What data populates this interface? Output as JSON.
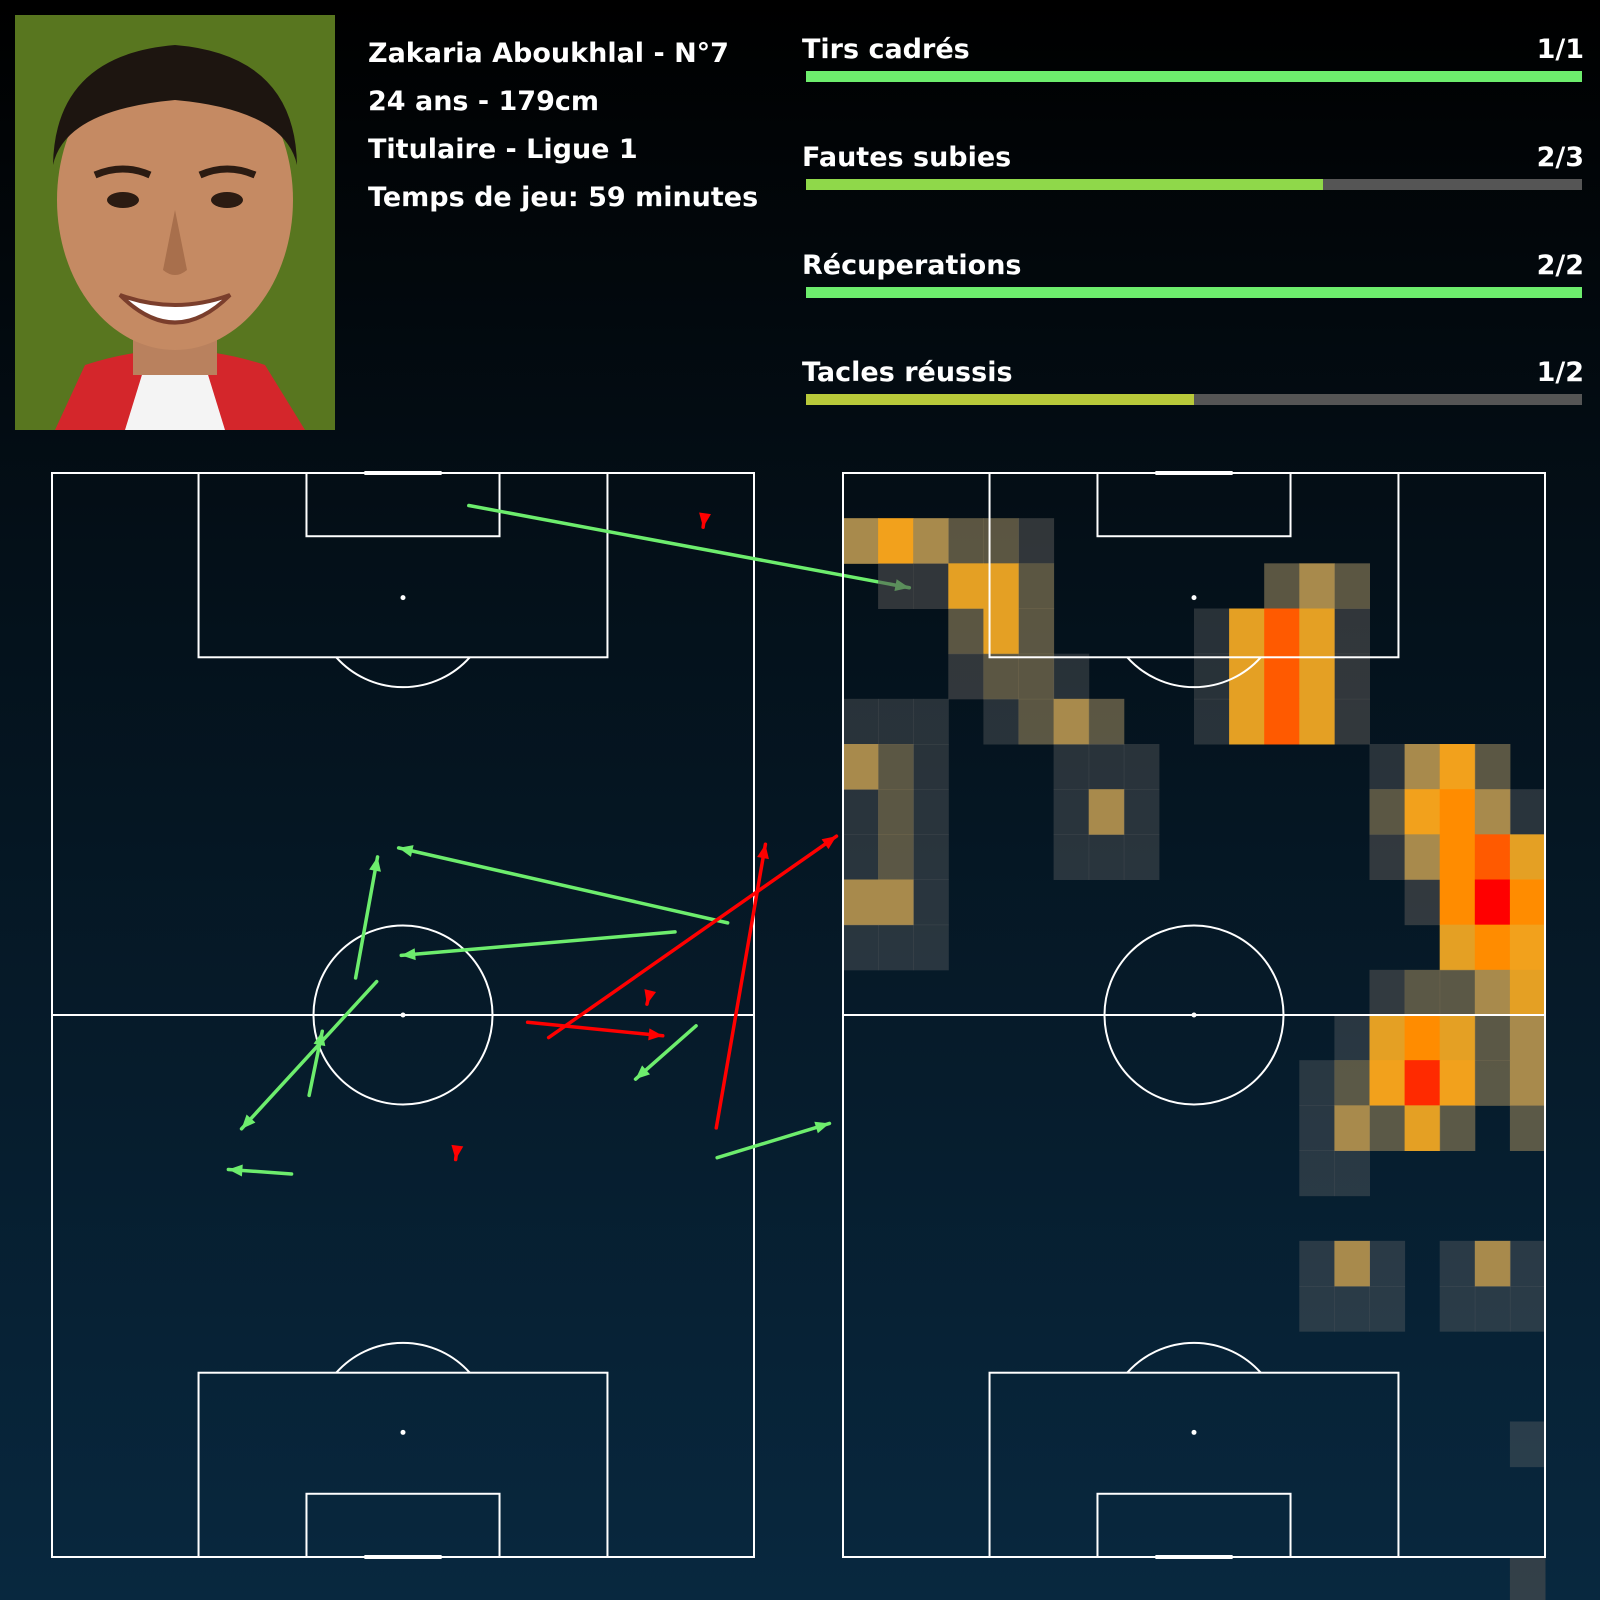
{
  "player": {
    "name_line": "Zakaria Aboukhlal - N°7",
    "age_height": "24 ans - 179cm",
    "status_league": "Titulaire - Ligue 1",
    "playing_time": "Temps de jeu: 59 minutes",
    "photo_icon": "player-portrait-photo"
  },
  "stats": [
    {
      "label": "Tirs cadrés",
      "value": "1/1",
      "made": 1,
      "total": 1,
      "color": "#6ded6d"
    },
    {
      "label": "Fautes subies",
      "value": "2/3",
      "made": 2,
      "total": 3,
      "color": "#8fd84a"
    },
    {
      "label": "Récuperations",
      "value": "2/2",
      "made": 2,
      "total": 2,
      "color": "#6ded6d"
    },
    {
      "label": "Tacles réussis",
      "value": "1/2",
      "made": 1,
      "total": 2,
      "color": "#b8c93a"
    }
  ],
  "colors": {
    "success": "#6ded6d",
    "fail": "#ff0000",
    "track": "#555555",
    "pitch_lines": "#ffffff"
  },
  "chart_data": [
    {
      "type": "scatter",
      "description_key": "pass-map",
      "pitch": {
        "length": 120,
        "width": 80,
        "orientation": "vertical"
      },
      "series": [
        {
          "outcome": "success",
          "color": "#6ded6d",
          "arrows": [
            [
              71.0,
              50.8,
              39.8,
              53.4
            ],
            [
              77.0,
              49.8,
              39.5,
              41.5
            ],
            [
              75.8,
              75.8,
              88.6,
              72.0
            ],
            [
              73.4,
              61.2,
              66.5,
              67.1
            ],
            [
              47.5,
              3.6,
              97.7,
              12.7
            ],
            [
              37.0,
              56.3,
              21.6,
              72.6
            ],
            [
              34.6,
              55.9,
              37.1,
              42.5
            ],
            [
              29.3,
              68.9,
              30.8,
              61.8
            ],
            [
              27.3,
              77.6,
              20.1,
              77.1
            ]
          ]
        },
        {
          "outcome": "fail",
          "color": "#ff0000",
          "arrows": [
            [
              56.6,
              62.5,
              89.4,
              40.2
            ],
            [
              75.7,
              72.5,
              81.3,
              41.1
            ],
            [
              54.2,
              60.8,
              69.6,
              62.3
            ],
            [
              74.3,
              5.3,
              74.2,
              6.0
            ],
            [
              68.0,
              58.0,
              67.8,
              58.8
            ],
            [
              46.1,
              75.2,
              46.0,
              76.0
            ]
          ]
        }
      ]
    },
    {
      "type": "heatmap",
      "description_key": "touch-heatmap",
      "pitch": {
        "length": 120,
        "width": 80,
        "orientation": "vertical"
      },
      "cell_size": {
        "width": 4,
        "length": 5
      },
      "cells": [
        [
          100,
          0.3
        ],
        [
          101,
          0.55
        ],
        [
          102,
          0.3
        ],
        [
          103,
          0.18
        ],
        [
          104,
          0.18
        ],
        [
          105,
          0.1
        ],
        [
          201,
          0.1
        ],
        [
          202,
          0.12
        ],
        [
          203,
          0.5
        ],
        [
          204,
          0.5
        ],
        [
          205,
          0.18
        ],
        [
          212,
          0.18
        ],
        [
          213,
          0.3
        ],
        [
          214,
          0.18
        ],
        [
          303,
          0.18
        ],
        [
          304,
          0.5
        ],
        [
          305,
          0.18
        ],
        [
          310,
          0.08
        ],
        [
          311,
          0.5
        ],
        [
          312,
          0.85
        ],
        [
          313,
          0.5
        ],
        [
          314,
          0.1
        ],
        [
          403,
          0.1
        ],
        [
          404,
          0.18
        ],
        [
          405,
          0.18
        ],
        [
          406,
          0.08
        ],
        [
          410,
          0.08
        ],
        [
          411,
          0.5
        ],
        [
          412,
          0.85
        ],
        [
          413,
          0.5
        ],
        [
          414,
          0.1
        ],
        [
          500,
          0.06
        ],
        [
          501,
          0.06
        ],
        [
          502,
          0.06
        ],
        [
          504,
          0.06
        ],
        [
          505,
          0.18
        ],
        [
          506,
          0.3
        ],
        [
          507,
          0.18
        ],
        [
          510,
          0.08
        ],
        [
          511,
          0.5
        ],
        [
          512,
          0.85
        ],
        [
          513,
          0.5
        ],
        [
          514,
          0.1
        ],
        [
          600,
          0.3
        ],
        [
          601,
          0.18
        ],
        [
          602,
          0.06
        ],
        [
          606,
          0.06
        ],
        [
          607,
          0.06
        ],
        [
          608,
          0.06
        ],
        [
          615,
          0.06
        ],
        [
          616,
          0.3
        ],
        [
          617,
          0.55
        ],
        [
          618,
          0.18
        ],
        [
          620,
          0.06
        ],
        [
          621,
          0.3
        ],
        [
          622,
          0.55
        ],
        [
          623,
          0.3
        ],
        [
          700,
          0.06
        ],
        [
          701,
          0.18
        ],
        [
          702,
          0.06
        ],
        [
          706,
          0.06
        ],
        [
          707,
          0.3
        ],
        [
          708,
          0.06
        ],
        [
          615,
          0.06
        ],
        [
          715,
          0.18
        ],
        [
          716,
          0.55
        ],
        [
          717,
          0.7
        ],
        [
          718,
          0.3
        ],
        [
          719,
          0.08
        ],
        [
          720,
          0.18
        ],
        [
          721,
          0.5
        ],
        [
          722,
          0.18
        ],
        [
          800,
          0.06
        ],
        [
          801,
          0.18
        ],
        [
          802,
          0.06
        ],
        [
          806,
          0.06
        ],
        [
          807,
          0.06
        ],
        [
          808,
          0.06
        ],
        [
          815,
          0.1
        ],
        [
          816,
          0.3
        ],
        [
          817,
          0.7
        ],
        [
          818,
          0.85
        ],
        [
          819,
          0.5
        ],
        [
          820,
          0.18
        ],
        [
          821,
          0.18
        ],
        [
          822,
          0.1
        ],
        [
          900,
          0.3
        ],
        [
          901,
          0.3
        ],
        [
          902,
          0.06
        ],
        [
          916,
          0.1
        ],
        [
          917,
          0.7
        ],
        [
          918,
          1.0
        ],
        [
          919,
          0.7
        ],
        [
          920,
          0.18
        ],
        [
          921,
          0.1
        ],
        [
          1000,
          0.06
        ],
        [
          1001,
          0.06
        ],
        [
          1002,
          0.06
        ],
        [
          1017,
          0.5
        ],
        [
          1018,
          0.7
        ],
        [
          1019,
          0.55
        ],
        [
          1020,
          0.3
        ],
        [
          1021,
          0.18
        ],
        [
          1022,
          0.1
        ],
        [
          1115,
          0.1
        ],
        [
          1116,
          0.18
        ],
        [
          1117,
          0.18
        ],
        [
          1118,
          0.3
        ],
        [
          1119,
          0.5
        ],
        [
          1120,
          0.5
        ],
        [
          1121,
          0.55
        ],
        [
          1122,
          0.3
        ],
        [
          1123,
          0.1
        ],
        [
          1214,
          0.06
        ],
        [
          1215,
          0.5
        ],
        [
          1216,
          0.7
        ],
        [
          1217,
          0.5
        ],
        [
          1218,
          0.18
        ],
        [
          1219,
          0.3
        ],
        [
          1220,
          0.5
        ],
        [
          1221,
          0.6
        ],
        [
          1222,
          0.6
        ],
        [
          1223,
          0.18
        ],
        [
          1313,
          0.06
        ],
        [
          1314,
          0.18
        ],
        [
          1315,
          0.55
        ],
        [
          1316,
          0.9
        ],
        [
          1317,
          0.55
        ],
        [
          1318,
          0.18
        ],
        [
          1319,
          0.3
        ],
        [
          1320,
          0.5
        ],
        [
          1321,
          0.5
        ],
        [
          1322,
          0.5
        ],
        [
          1323,
          0.18
        ],
        [
          1413,
          0.06
        ],
        [
          1414,
          0.3
        ],
        [
          1415,
          0.18
        ],
        [
          1416,
          0.5
        ],
        [
          1417,
          0.18
        ],
        [
          1419,
          0.18
        ],
        [
          1420,
          0.18
        ],
        [
          1421,
          0.3
        ],
        [
          1422,
          0.3
        ],
        [
          1423,
          0.18
        ],
        [
          1513,
          0.06
        ],
        [
          1514,
          0.06
        ],
        [
          1522,
          0.1
        ],
        [
          1523,
          0.3
        ],
        [
          1524,
          0.1
        ],
        [
          1713,
          0.06
        ],
        [
          1714,
          0.3
        ],
        [
          1715,
          0.06
        ],
        [
          1717,
          0.06
        ],
        [
          1718,
          0.3
        ],
        [
          1719,
          0.06
        ],
        [
          1813,
          0.06
        ],
        [
          1814,
          0.06
        ],
        [
          1815,
          0.06
        ],
        [
          1817,
          0.06
        ],
        [
          1818,
          0.06
        ],
        [
          1819,
          0.06
        ],
        [
          2119,
          0.06
        ],
        [
          2120,
          0.3
        ],
        [
          2121,
          0.06
        ],
        [
          2419,
          0.1
        ],
        [
          2420,
          0.3
        ]
      ],
      "extra_cells": [
        [
          23,
          23,
          0.1
        ],
        [
          23,
          24,
          0.3
        ],
        [
          24,
          23,
          0.3
        ],
        [
          24,
          24,
          0.95
        ]
      ]
    }
  ]
}
